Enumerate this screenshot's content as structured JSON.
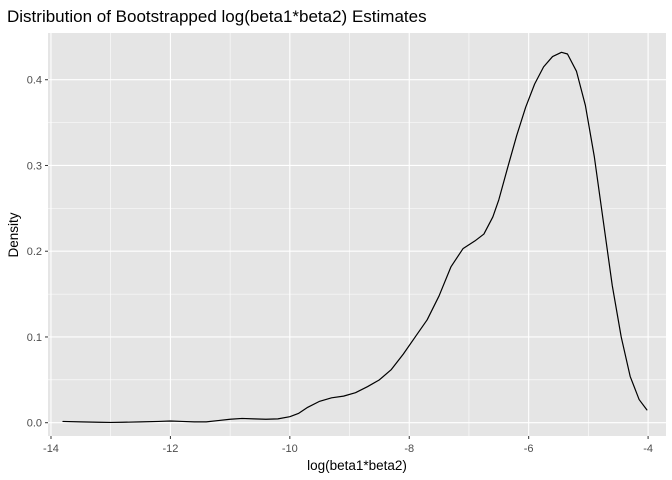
{
  "chart_data": {
    "type": "line",
    "title": "Distribution of Bootstrapped log(beta1*beta2) Estimates",
    "xlabel": "log(beta1*beta2)",
    "ylabel": "Density",
    "xlim": [
      -14.05,
      -3.7
    ],
    "ylim": [
      -0.0155,
      0.4545
    ],
    "x_ticks": [
      -14,
      -12,
      -10,
      -8,
      -6,
      -4
    ],
    "x_tick_labels": [
      "-14",
      "-12",
      "-10",
      "-8",
      "-6",
      "-4"
    ],
    "y_ticks": [
      0.0,
      0.1,
      0.2,
      0.3,
      0.4
    ],
    "y_tick_labels": [
      "0.0",
      "0.1",
      "0.2",
      "0.3",
      "0.4"
    ],
    "grid": true,
    "colors": {
      "panel": "#e5e5e5",
      "grid": "#ffffff",
      "line": "#000000",
      "tick": "#333333"
    },
    "series": [
      {
        "name": "density",
        "x": [
          -13.8,
          -13.5,
          -13.2,
          -13.0,
          -12.8,
          -12.5,
          -12.2,
          -12.0,
          -11.8,
          -11.6,
          -11.4,
          -11.2,
          -11.0,
          -10.8,
          -10.6,
          -10.4,
          -10.2,
          -10.0,
          -9.85,
          -9.7,
          -9.5,
          -9.3,
          -9.1,
          -8.9,
          -8.7,
          -8.5,
          -8.3,
          -8.1,
          -7.9,
          -7.7,
          -7.5,
          -7.3,
          -7.1,
          -6.9,
          -6.75,
          -6.6,
          -6.5,
          -6.35,
          -6.2,
          -6.05,
          -5.9,
          -5.75,
          -5.6,
          -5.45,
          -5.35,
          -5.2,
          -5.05,
          -4.9,
          -4.75,
          -4.6,
          -4.45,
          -4.3,
          -4.15,
          -4.02
        ],
        "y": [
          0.0015,
          0.001,
          0.0005,
          0.0003,
          0.0005,
          0.001,
          0.0015,
          0.002,
          0.0015,
          0.001,
          0.001,
          0.0025,
          0.004,
          0.005,
          0.0045,
          0.004,
          0.0045,
          0.007,
          0.011,
          0.018,
          0.025,
          0.029,
          0.031,
          0.035,
          0.042,
          0.05,
          0.062,
          0.08,
          0.1,
          0.12,
          0.148,
          0.182,
          0.203,
          0.212,
          0.22,
          0.24,
          0.26,
          0.298,
          0.335,
          0.368,
          0.395,
          0.415,
          0.427,
          0.432,
          0.43,
          0.41,
          0.37,
          0.31,
          0.235,
          0.16,
          0.1,
          0.054,
          0.027,
          0.015
        ]
      }
    ]
  }
}
